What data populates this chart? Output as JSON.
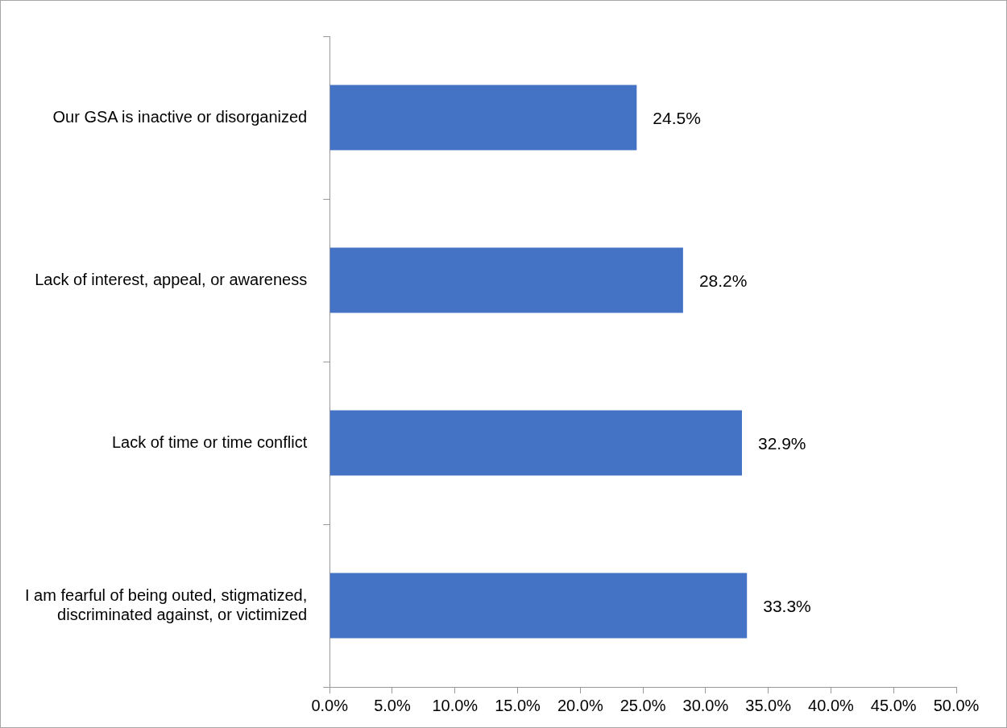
{
  "chart_data": {
    "type": "bar",
    "orientation": "horizontal",
    "categories": [
      "Our GSA is inactive or disorganized",
      "Lack of interest, appeal, or awareness",
      "Lack of time or time conflict",
      "I am fearful of being outed, stigmatized, discriminated against, or victimized"
    ],
    "values": [
      24.5,
      28.2,
      32.9,
      33.3
    ],
    "value_labels": [
      "24.5%",
      "28.2%",
      "32.9%",
      "33.3%"
    ],
    "color": "#4472c4",
    "xlim": [
      0,
      50
    ],
    "xticks": [
      {
        "value": 0,
        "label": "0.0%"
      },
      {
        "value": 5,
        "label": "5.0%"
      },
      {
        "value": 10,
        "label": "10.0%"
      },
      {
        "value": 15,
        "label": "15.0%"
      },
      {
        "value": 20,
        "label": "20.0%"
      },
      {
        "value": 25,
        "label": "25.0%"
      },
      {
        "value": 30,
        "label": "30.0%"
      },
      {
        "value": 35,
        "label": "35.0%"
      },
      {
        "value": 40,
        "label": "40.0%"
      },
      {
        "value": 45,
        "label": "45.0%"
      },
      {
        "value": 50,
        "label": "50.0%"
      }
    ],
    "grid": false,
    "legend": false
  }
}
